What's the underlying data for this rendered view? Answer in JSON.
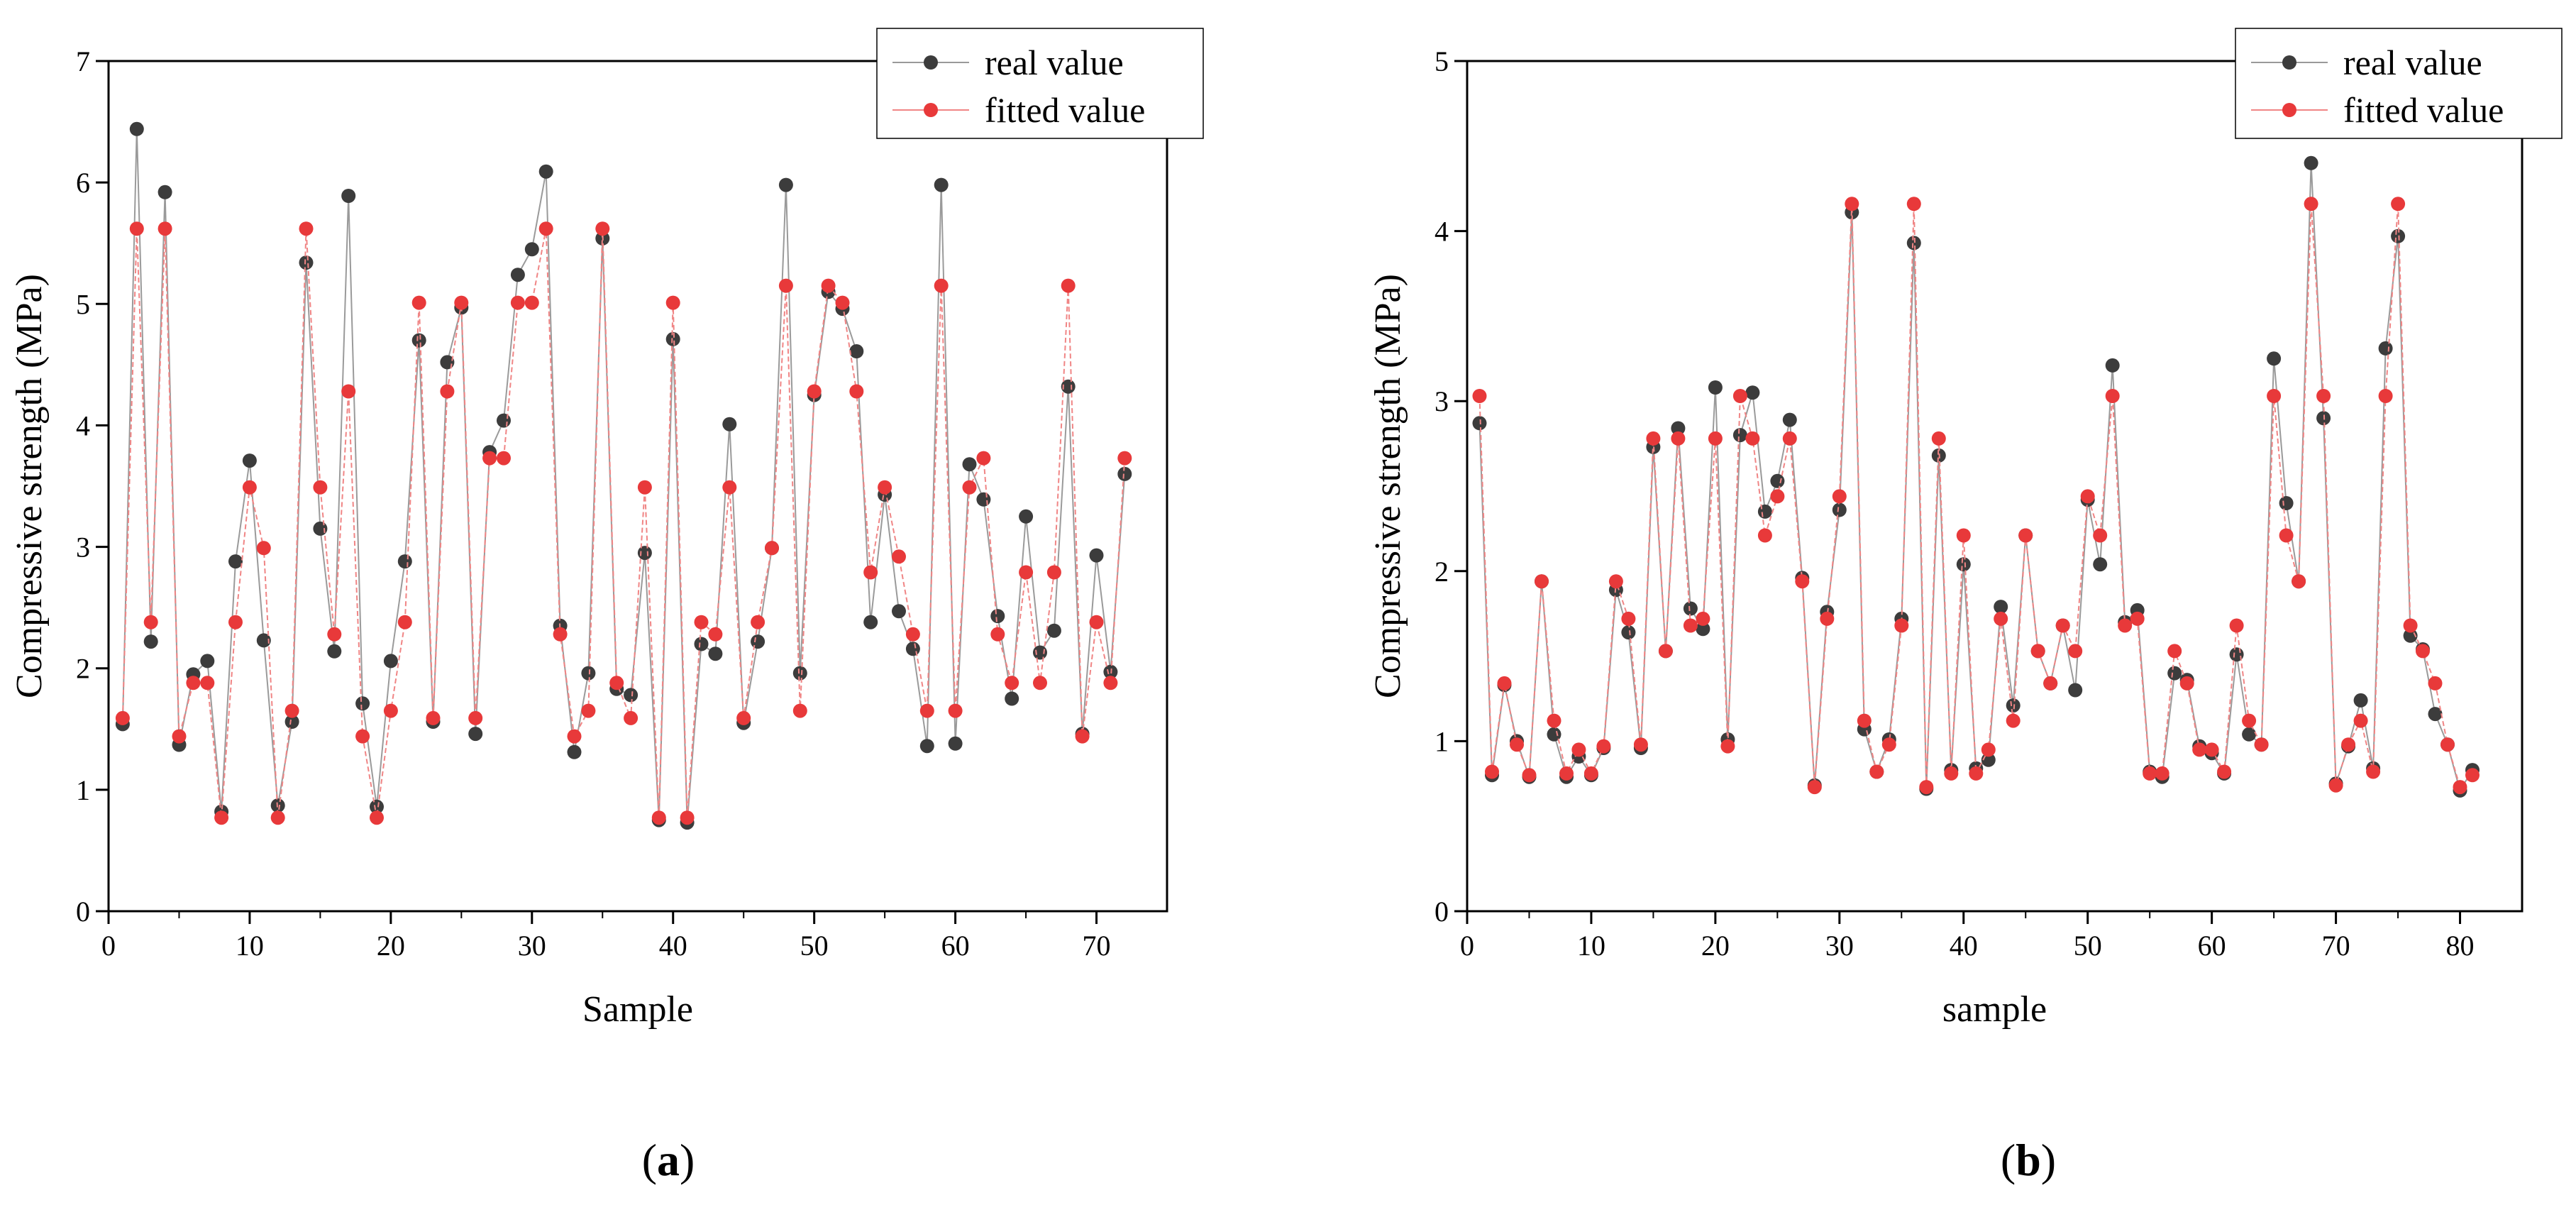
{
  "colors": {
    "real": "#3c3c3c",
    "fitted": "#e8393a",
    "real_line": "#9a9a9a",
    "fitted_line": "#f08585"
  },
  "chart_data": [
    {
      "id": "a",
      "type": "line",
      "panel_label": {
        "open": "(",
        "letter": "a",
        "close": ")"
      },
      "xlabel": "Sample",
      "ylabel": "Compressive strength (MPa)",
      "xlim": [
        0,
        75
      ],
      "ylim": [
        0,
        7
      ],
      "xticks": [
        0,
        10,
        20,
        30,
        40,
        50,
        60,
        70
      ],
      "yticks": [
        0,
        1,
        2,
        3,
        4,
        5,
        6,
        7
      ],
      "legend_position": "top-right",
      "series": [
        {
          "name": "real value",
          "key": "real",
          "values": [
            1.54,
            6.44,
            2.22,
            5.92,
            1.37,
            1.95,
            2.06,
            0.82,
            2.88,
            3.71,
            2.23,
            0.87,
            1.56,
            5.34,
            3.15,
            2.14,
            5.89,
            1.71,
            0.86,
            2.06,
            2.88,
            4.7,
            1.56,
            4.52,
            4.97,
            1.46,
            3.78,
            4.04,
            5.24,
            5.45,
            6.09,
            2.35,
            1.31,
            1.96,
            5.54,
            1.83,
            1.78,
            2.95,
            0.75,
            4.71,
            0.73,
            2.2,
            2.12,
            4.01,
            1.55,
            2.22,
            2.99,
            5.98,
            1.96,
            4.25,
            5.1,
            4.96,
            4.61,
            2.38,
            3.43,
            2.47,
            2.16,
            1.36,
            5.98,
            1.38,
            3.68,
            3.39,
            2.43,
            1.75,
            3.25,
            2.13,
            2.31,
            4.32,
            1.46,
            2.93,
            1.97,
            3.6
          ]
        },
        {
          "name": "fitted value",
          "key": "fitted",
          "values": [
            1.59,
            5.62,
            2.38,
            5.62,
            1.44,
            1.88,
            1.88,
            0.77,
            2.38,
            3.49,
            2.99,
            0.77,
            1.65,
            5.62,
            3.49,
            2.28,
            4.28,
            1.44,
            0.77,
            1.65,
            2.38,
            5.01,
            1.59,
            4.28,
            5.01,
            1.59,
            3.73,
            3.73,
            5.01,
            5.01,
            5.62,
            2.28,
            1.44,
            1.65,
            5.62,
            1.88,
            1.59,
            3.49,
            0.77,
            5.01,
            0.77,
            2.38,
            2.28,
            3.49,
            1.59,
            2.38,
            2.99,
            5.15,
            1.65,
            4.28,
            5.15,
            5.01,
            4.28,
            2.79,
            3.49,
            2.92,
            2.28,
            1.65,
            5.15,
            1.65,
            3.49,
            3.73,
            2.28,
            1.88,
            2.79,
            1.88,
            2.79,
            5.15,
            1.44,
            2.38,
            1.88,
            3.73
          ]
        }
      ]
    },
    {
      "id": "b",
      "type": "line",
      "panel_label": {
        "open": "(",
        "letter": "b",
        "close": ")"
      },
      "xlabel": "sample",
      "ylabel": "Compressive strength (MPa)",
      "xlim": [
        0,
        85
      ],
      "ylim": [
        0,
        5
      ],
      "xticks": [
        0,
        10,
        20,
        30,
        40,
        50,
        60,
        70,
        80
      ],
      "yticks": [
        0,
        1,
        2,
        3,
        4,
        5
      ],
      "legend_position": "top-right",
      "series": [
        {
          "name": "real value",
          "key": "real",
          "values": [
            2.87,
            0.8,
            1.33,
            1.0,
            0.79,
            1.94,
            1.04,
            0.79,
            0.91,
            0.8,
            0.96,
            1.89,
            1.64,
            0.96,
            2.73,
            1.53,
            2.84,
            1.78,
            1.66,
            3.08,
            1.01,
            2.8,
            3.05,
            2.35,
            2.53,
            2.89,
            1.96,
            0.74,
            1.76,
            2.36,
            4.11,
            1.07,
            0.82,
            1.01,
            1.72,
            3.93,
            0.72,
            2.68,
            0.83,
            2.04,
            0.84,
            0.89,
            1.79,
            1.21,
            2.21,
            1.53,
            1.34,
            1.68,
            1.3,
            2.42,
            2.04,
            3.21,
            1.7,
            1.77,
            0.82,
            0.79,
            1.4,
            1.36,
            0.97,
            0.93,
            0.81,
            1.51,
            1.04,
            0.98,
            3.25,
            2.4,
            1.94,
            4.4,
            2.9,
            0.75,
            0.97,
            1.24,
            0.84,
            3.31,
            3.97,
            1.62,
            1.54,
            1.16,
            0.98,
            0.71,
            0.83
          ]
        },
        {
          "name": "fitted value",
          "key": "fitted",
          "values": [
            3.03,
            0.82,
            1.34,
            0.98,
            0.8,
            1.94,
            1.12,
            0.81,
            0.95,
            0.81,
            0.97,
            1.94,
            1.72,
            0.98,
            2.78,
            1.53,
            2.78,
            1.68,
            1.72,
            2.78,
            0.97,
            3.03,
            2.78,
            2.21,
            2.44,
            2.78,
            1.94,
            0.73,
            1.72,
            2.44,
            4.16,
            1.12,
            0.82,
            0.98,
            1.68,
            4.16,
            0.73,
            2.78,
            0.81,
            2.21,
            0.81,
            0.95,
            1.72,
            1.12,
            2.21,
            1.53,
            1.34,
            1.68,
            1.53,
            2.44,
            2.21,
            3.03,
            1.68,
            1.72,
            0.81,
            0.81,
            1.53,
            1.34,
            0.95,
            0.95,
            0.82,
            1.68,
            1.12,
            0.98,
            3.03,
            2.21,
            1.94,
            4.16,
            3.03,
            0.74,
            0.98,
            1.12,
            0.82,
            3.03,
            4.16,
            1.68,
            1.53,
            1.34,
            0.98,
            0.73,
            0.8
          ]
        }
      ]
    }
  ]
}
